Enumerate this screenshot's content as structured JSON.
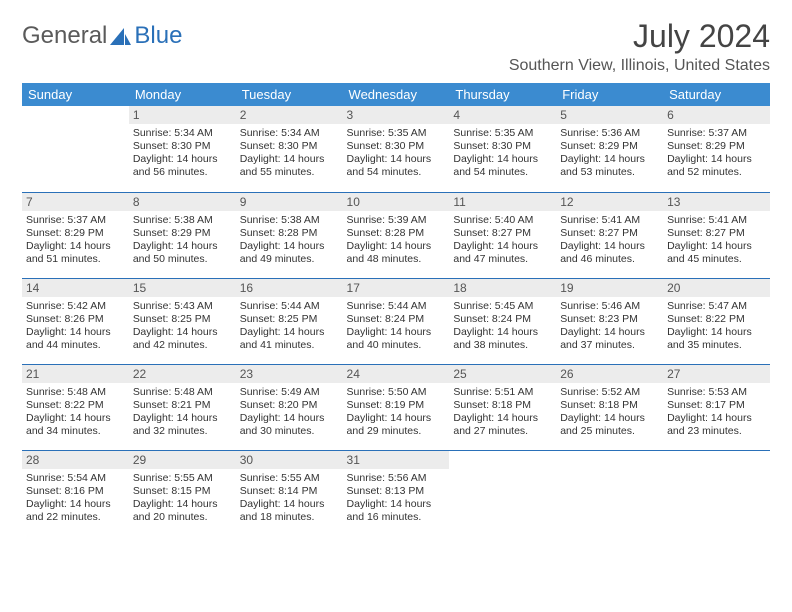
{
  "logo": {
    "part1": "General",
    "part2": "Blue"
  },
  "title": "July 2024",
  "location": "Southern View, Illinois, United States",
  "colors": {
    "header_bg": "#3b8bd0",
    "header_text": "#ffffff",
    "border": "#2a70b8",
    "daynum_bg": "#ececec",
    "text": "#333333"
  },
  "weekdays": [
    "Sunday",
    "Monday",
    "Tuesday",
    "Wednesday",
    "Thursday",
    "Friday",
    "Saturday"
  ],
  "first_weekday": 1,
  "days": [
    {
      "n": 1,
      "sr": "5:34 AM",
      "ss": "8:30 PM",
      "dl": "14 hours and 56 minutes."
    },
    {
      "n": 2,
      "sr": "5:34 AM",
      "ss": "8:30 PM",
      "dl": "14 hours and 55 minutes."
    },
    {
      "n": 3,
      "sr": "5:35 AM",
      "ss": "8:30 PM",
      "dl": "14 hours and 54 minutes."
    },
    {
      "n": 4,
      "sr": "5:35 AM",
      "ss": "8:30 PM",
      "dl": "14 hours and 54 minutes."
    },
    {
      "n": 5,
      "sr": "5:36 AM",
      "ss": "8:29 PM",
      "dl": "14 hours and 53 minutes."
    },
    {
      "n": 6,
      "sr": "5:37 AM",
      "ss": "8:29 PM",
      "dl": "14 hours and 52 minutes."
    },
    {
      "n": 7,
      "sr": "5:37 AM",
      "ss": "8:29 PM",
      "dl": "14 hours and 51 minutes."
    },
    {
      "n": 8,
      "sr": "5:38 AM",
      "ss": "8:29 PM",
      "dl": "14 hours and 50 minutes."
    },
    {
      "n": 9,
      "sr": "5:38 AM",
      "ss": "8:28 PM",
      "dl": "14 hours and 49 minutes."
    },
    {
      "n": 10,
      "sr": "5:39 AM",
      "ss": "8:28 PM",
      "dl": "14 hours and 48 minutes."
    },
    {
      "n": 11,
      "sr": "5:40 AM",
      "ss": "8:27 PM",
      "dl": "14 hours and 47 minutes."
    },
    {
      "n": 12,
      "sr": "5:41 AM",
      "ss": "8:27 PM",
      "dl": "14 hours and 46 minutes."
    },
    {
      "n": 13,
      "sr": "5:41 AM",
      "ss": "8:27 PM",
      "dl": "14 hours and 45 minutes."
    },
    {
      "n": 14,
      "sr": "5:42 AM",
      "ss": "8:26 PM",
      "dl": "14 hours and 44 minutes."
    },
    {
      "n": 15,
      "sr": "5:43 AM",
      "ss": "8:25 PM",
      "dl": "14 hours and 42 minutes."
    },
    {
      "n": 16,
      "sr": "5:44 AM",
      "ss": "8:25 PM",
      "dl": "14 hours and 41 minutes."
    },
    {
      "n": 17,
      "sr": "5:44 AM",
      "ss": "8:24 PM",
      "dl": "14 hours and 40 minutes."
    },
    {
      "n": 18,
      "sr": "5:45 AM",
      "ss": "8:24 PM",
      "dl": "14 hours and 38 minutes."
    },
    {
      "n": 19,
      "sr": "5:46 AM",
      "ss": "8:23 PM",
      "dl": "14 hours and 37 minutes."
    },
    {
      "n": 20,
      "sr": "5:47 AM",
      "ss": "8:22 PM",
      "dl": "14 hours and 35 minutes."
    },
    {
      "n": 21,
      "sr": "5:48 AM",
      "ss": "8:22 PM",
      "dl": "14 hours and 34 minutes."
    },
    {
      "n": 22,
      "sr": "5:48 AM",
      "ss": "8:21 PM",
      "dl": "14 hours and 32 minutes."
    },
    {
      "n": 23,
      "sr": "5:49 AM",
      "ss": "8:20 PM",
      "dl": "14 hours and 30 minutes."
    },
    {
      "n": 24,
      "sr": "5:50 AM",
      "ss": "8:19 PM",
      "dl": "14 hours and 29 minutes."
    },
    {
      "n": 25,
      "sr": "5:51 AM",
      "ss": "8:18 PM",
      "dl": "14 hours and 27 minutes."
    },
    {
      "n": 26,
      "sr": "5:52 AM",
      "ss": "8:18 PM",
      "dl": "14 hours and 25 minutes."
    },
    {
      "n": 27,
      "sr": "5:53 AM",
      "ss": "8:17 PM",
      "dl": "14 hours and 23 minutes."
    },
    {
      "n": 28,
      "sr": "5:54 AM",
      "ss": "8:16 PM",
      "dl": "14 hours and 22 minutes."
    },
    {
      "n": 29,
      "sr": "5:55 AM",
      "ss": "8:15 PM",
      "dl": "14 hours and 20 minutes."
    },
    {
      "n": 30,
      "sr": "5:55 AM",
      "ss": "8:14 PM",
      "dl": "14 hours and 18 minutes."
    },
    {
      "n": 31,
      "sr": "5:56 AM",
      "ss": "8:13 PM",
      "dl": "14 hours and 16 minutes."
    }
  ],
  "labels": {
    "sunrise": "Sunrise:",
    "sunset": "Sunset:",
    "daylight": "Daylight:"
  }
}
